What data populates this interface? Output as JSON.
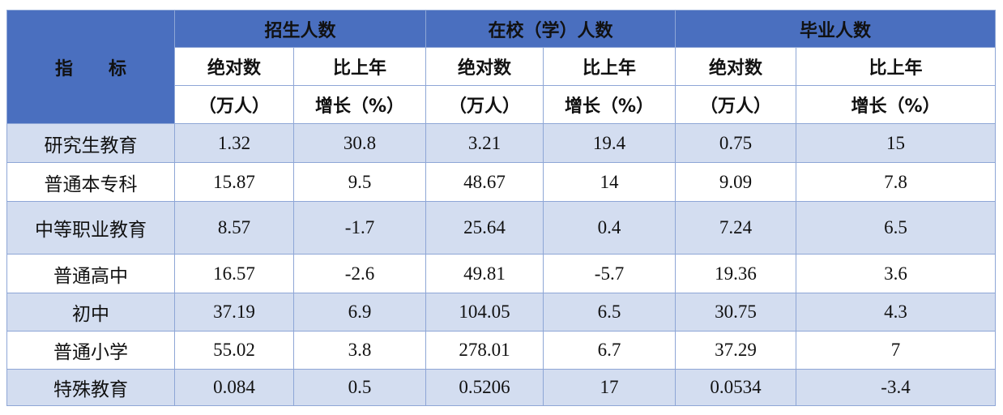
{
  "table": {
    "stub_header": "指　　标",
    "groups": [
      "招生人数",
      "在校（学）人数",
      "毕业人数"
    ],
    "header_row2": [
      "绝对数",
      "比上年",
      "绝对数",
      "比上年",
      "绝对数",
      "比上年"
    ],
    "header_row3": [
      "（万人）",
      "增长（%）",
      "（万人）",
      "增长（%）",
      "（万人）",
      "增长（%）"
    ],
    "rows": [
      [
        "研究生教育",
        1.32,
        30.8,
        3.21,
        19.4,
        0.75,
        15
      ],
      [
        "普通本专科",
        15.87,
        9.5,
        48.67,
        14,
        9.09,
        7.8
      ],
      [
        "中等职业教育",
        8.57,
        -1.7,
        25.64,
        0.4,
        7.24,
        6.5
      ],
      [
        "普通高中",
        16.57,
        -2.6,
        49.81,
        -5.7,
        19.36,
        3.6
      ],
      [
        "初中",
        37.19,
        6.9,
        104.05,
        6.5,
        30.75,
        4.3
      ],
      [
        "普通小学",
        55.02,
        3.8,
        278.01,
        6.7,
        37.29,
        7
      ],
      [
        "特殊教育",
        0.084,
        0.5,
        0.5206,
        17,
        0.0534,
        -3.4
      ]
    ]
  }
}
